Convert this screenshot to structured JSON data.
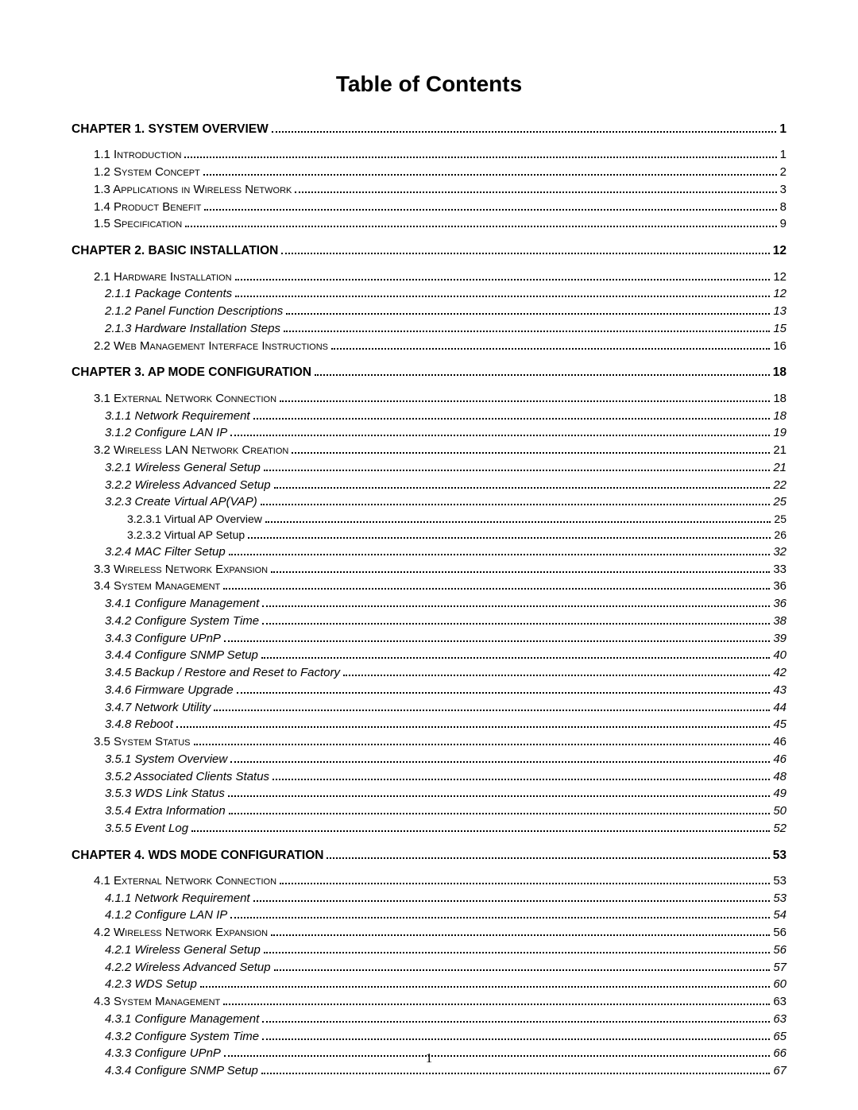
{
  "title": "Table of Contents",
  "footerPage": "1",
  "entries": [
    {
      "level": "chapter",
      "label": "CHAPTER 1. SYSTEM OVERVIEW",
      "page": "1"
    },
    {
      "level": "l1",
      "label": "1.1 Introduction",
      "page": "1"
    },
    {
      "level": "l1",
      "label": "1.2 System Concept",
      "page": "2"
    },
    {
      "level": "l1",
      "label": "1.3 Applications in Wireless Network",
      "page": "3"
    },
    {
      "level": "l1",
      "label": "1.4 Product Benefit",
      "page": "8"
    },
    {
      "level": "l1",
      "label": "1.5 Specification",
      "page": "9"
    },
    {
      "level": "chapter",
      "label": "CHAPTER 2. BASIC INSTALLATION",
      "page": "12"
    },
    {
      "level": "l1",
      "label": "2.1 Hardware Installation",
      "page": "12"
    },
    {
      "level": "l2",
      "label": "2.1.1 Package Contents",
      "page": "12"
    },
    {
      "level": "l2",
      "label": "2.1.2 Panel Function Descriptions",
      "page": "13"
    },
    {
      "level": "l2",
      "label": "2.1.3 Hardware Installation Steps",
      "page": "15"
    },
    {
      "level": "l1",
      "label": "2.2 Web Management Interface Instructions",
      "page": "16"
    },
    {
      "level": "chapter",
      "label": "CHAPTER 3. AP MODE CONFIGURATION",
      "page": "18"
    },
    {
      "level": "l1",
      "label": "3.1 External Network Connection",
      "page": "18"
    },
    {
      "level": "l2",
      "label": "3.1.1 Network Requirement",
      "page": "18"
    },
    {
      "level": "l2",
      "label": "3.1.2 Configure LAN IP",
      "page": "19"
    },
    {
      "level": "l1",
      "label": "3.2 Wireless LAN Network Creation",
      "page": "21"
    },
    {
      "level": "l2",
      "label": "3.2.1 Wireless General Setup",
      "page": "21"
    },
    {
      "level": "l2",
      "label": "3.2.2 Wireless Advanced Setup",
      "page": "22"
    },
    {
      "level": "l2",
      "label": "3.2.3 Create Virtual AP(VAP)",
      "page": "25"
    },
    {
      "level": "l3",
      "label": "3.2.3.1 Virtual AP Overview",
      "page": "25"
    },
    {
      "level": "l3",
      "label": "3.2.3.2 Virtual AP Setup",
      "page": "26"
    },
    {
      "level": "l2",
      "label": "3.2.4 MAC Filter Setup",
      "page": "32"
    },
    {
      "level": "l1",
      "label": "3.3 Wireless Network Expansion",
      "page": "33"
    },
    {
      "level": "l1",
      "label": "3.4 System Management",
      "page": "36"
    },
    {
      "level": "l2",
      "label": "3.4.1 Configure Management",
      "page": "36"
    },
    {
      "level": "l2",
      "label": "3.4.2 Configure System Time",
      "page": "38"
    },
    {
      "level": "l2",
      "label": "3.4.3 Configure UPnP",
      "page": "39"
    },
    {
      "level": "l2",
      "label": "3.4.4 Configure SNMP Setup",
      "page": "40"
    },
    {
      "level": "l2",
      "label": "3.4.5 Backup / Restore and Reset to Factory",
      "page": "42"
    },
    {
      "level": "l2",
      "label": "3.4.6 Firmware Upgrade",
      "page": "43"
    },
    {
      "level": "l2",
      "label": "3.4.7 Network Utility",
      "page": "44"
    },
    {
      "level": "l2",
      "label": "3.4.8 Reboot",
      "page": "45"
    },
    {
      "level": "l1",
      "label": "3.5 System Status",
      "page": "46"
    },
    {
      "level": "l2",
      "label": "3.5.1 System Overview",
      "page": "46"
    },
    {
      "level": "l2",
      "label": "3.5.2 Associated Clients Status",
      "page": "48"
    },
    {
      "level": "l2",
      "label": "3.5.3 WDS Link Status",
      "page": "49"
    },
    {
      "level": "l2",
      "label": "3.5.4 Extra Information",
      "page": "50"
    },
    {
      "level": "l2",
      "label": "3.5.5 Event Log",
      "page": "52"
    },
    {
      "level": "chapter",
      "label": "CHAPTER 4. WDS MODE CONFIGURATION",
      "page": "53"
    },
    {
      "level": "l1",
      "label": "4.1 External Network Connection",
      "page": "53"
    },
    {
      "level": "l2",
      "label": "4.1.1 Network Requirement",
      "page": "53"
    },
    {
      "level": "l2",
      "label": "4.1.2 Configure LAN IP",
      "page": "54"
    },
    {
      "level": "l1",
      "label": "4.2 Wireless Network Expansion",
      "page": "56"
    },
    {
      "level": "l2",
      "label": "4.2.1 Wireless General Setup",
      "page": "56"
    },
    {
      "level": "l2",
      "label": "4.2.2 Wireless Advanced Setup",
      "page": "57"
    },
    {
      "level": "l2",
      "label": "4.2.3 WDS Setup",
      "page": "60"
    },
    {
      "level": "l1",
      "label": "4.3 System Management",
      "page": "63"
    },
    {
      "level": "l2",
      "label": "4.3.1 Configure Management",
      "page": "63"
    },
    {
      "level": "l2",
      "label": "4.3.2 Configure System Time",
      "page": "65"
    },
    {
      "level": "l2",
      "label": "4.3.3 Configure UPnP",
      "page": "66"
    },
    {
      "level": "l2",
      "label": "4.3.4 Configure SNMP Setup",
      "page": "67"
    }
  ]
}
